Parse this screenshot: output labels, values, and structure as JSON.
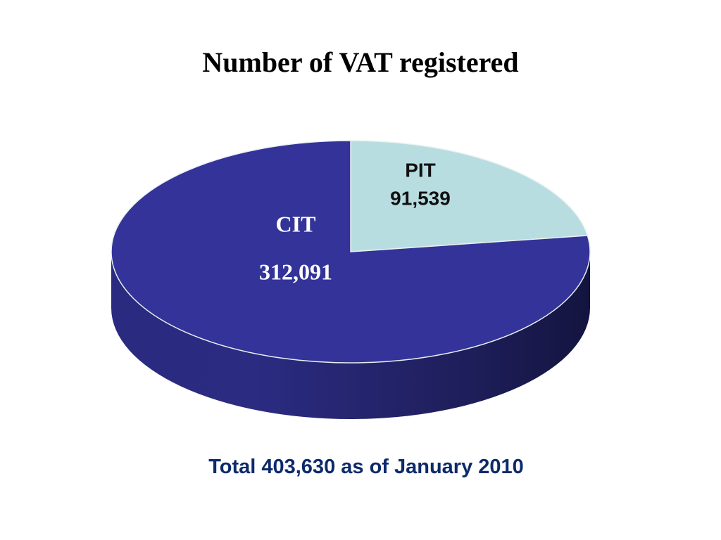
{
  "chart_data": {
    "type": "pie",
    "title": "Number of VAT registered",
    "categories": [
      "PIT",
      "CIT"
    ],
    "values": [
      91539,
      312091
    ],
    "value_labels": [
      "91,539",
      "312,091"
    ],
    "colors": [
      "#b8dde0",
      "#333399"
    ],
    "footnote": "Total 403,630 as of January 2010"
  }
}
